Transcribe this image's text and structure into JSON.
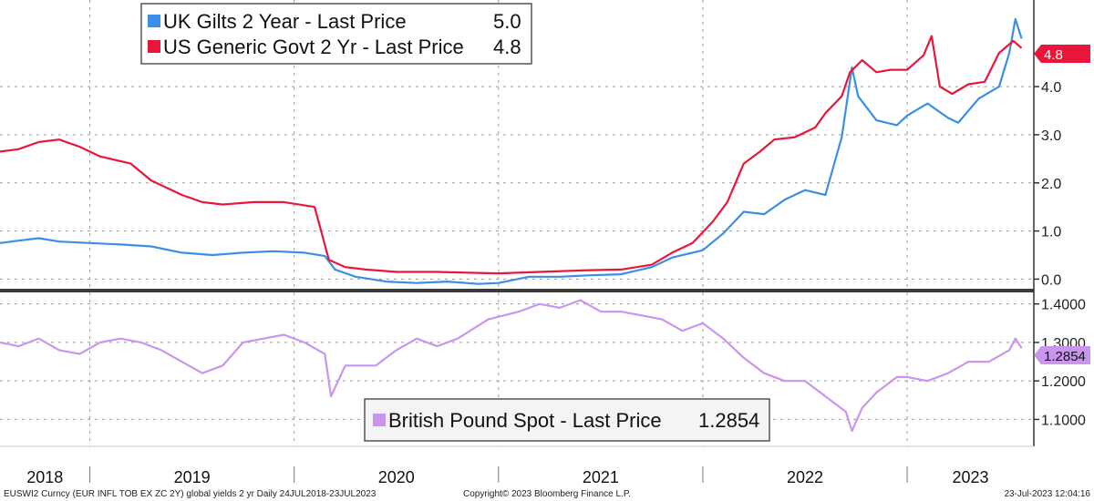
{
  "chart_data": [
    {
      "type": "line",
      "ylim": [
        -0.2,
        5.8
      ],
      "y_ticks": [
        "0.0",
        "1.0",
        "2.0",
        "3.0",
        "4.0"
      ],
      "y_tick_values": [
        0,
        1,
        2,
        3,
        4
      ],
      "last_price_tag": "4.8",
      "legend": {
        "placement": "top-left",
        "entries": [
          {
            "label": "UK Gilts 2 Year - Last Price",
            "value": "5.0",
            "color": "#3a8ee6"
          },
          {
            "label": "US Generic Govt 2 Yr - Last Price",
            "value": "4.8",
            "color": "#e8173a"
          }
        ]
      },
      "series": [
        {
          "name": "UK Gilts 2 Year - Last Price",
          "color": "#3a8ee6",
          "values": [
            [
              2018.56,
              0.75
            ],
            [
              2018.65,
              0.8
            ],
            [
              2018.75,
              0.85
            ],
            [
              2018.85,
              0.78
            ],
            [
              2019.0,
              0.75
            ],
            [
              2019.15,
              0.72
            ],
            [
              2019.3,
              0.68
            ],
            [
              2019.45,
              0.55
            ],
            [
              2019.6,
              0.5
            ],
            [
              2019.75,
              0.55
            ],
            [
              2019.9,
              0.58
            ],
            [
              2020.05,
              0.55
            ],
            [
              2020.15,
              0.48
            ],
            [
              2020.2,
              0.2
            ],
            [
              2020.3,
              0.05
            ],
            [
              2020.45,
              -0.05
            ],
            [
              2020.6,
              -0.08
            ],
            [
              2020.75,
              -0.05
            ],
            [
              2020.9,
              -0.1
            ],
            [
              2021.0,
              -0.08
            ],
            [
              2021.15,
              0.05
            ],
            [
              2021.3,
              0.05
            ],
            [
              2021.45,
              0.08
            ],
            [
              2021.6,
              0.1
            ],
            [
              2021.75,
              0.25
            ],
            [
              2021.85,
              0.45
            ],
            [
              2021.95,
              0.55
            ],
            [
              2022.0,
              0.6
            ],
            [
              2022.1,
              0.95
            ],
            [
              2022.2,
              1.4
            ],
            [
              2022.3,
              1.35
            ],
            [
              2022.4,
              1.65
            ],
            [
              2022.5,
              1.85
            ],
            [
              2022.6,
              1.75
            ],
            [
              2022.68,
              2.95
            ],
            [
              2022.73,
              4.4
            ],
            [
              2022.76,
              3.8
            ],
            [
              2022.85,
              3.3
            ],
            [
              2022.95,
              3.2
            ],
            [
              2023.0,
              3.4
            ],
            [
              2023.1,
              3.65
            ],
            [
              2023.2,
              3.35
            ],
            [
              2023.25,
              3.25
            ],
            [
              2023.35,
              3.75
            ],
            [
              2023.45,
              4.0
            ],
            [
              2023.5,
              4.7
            ],
            [
              2023.53,
              5.4
            ],
            [
              2023.56,
              5.0
            ]
          ]
        },
        {
          "name": "US Generic Govt 2 Yr - Last Price",
          "color": "#e8173a",
          "values": [
            [
              2018.56,
              2.65
            ],
            [
              2018.65,
              2.7
            ],
            [
              2018.75,
              2.85
            ],
            [
              2018.85,
              2.9
            ],
            [
              2018.95,
              2.75
            ],
            [
              2019.05,
              2.55
            ],
            [
              2019.2,
              2.4
            ],
            [
              2019.3,
              2.05
            ],
            [
              2019.45,
              1.75
            ],
            [
              2019.55,
              1.6
            ],
            [
              2019.65,
              1.55
            ],
            [
              2019.8,
              1.6
            ],
            [
              2019.95,
              1.6
            ],
            [
              2020.1,
              1.5
            ],
            [
              2020.17,
              0.4
            ],
            [
              2020.25,
              0.25
            ],
            [
              2020.35,
              0.2
            ],
            [
              2020.5,
              0.15
            ],
            [
              2020.7,
              0.15
            ],
            [
              2020.9,
              0.13
            ],
            [
              2021.0,
              0.12
            ],
            [
              2021.2,
              0.15
            ],
            [
              2021.4,
              0.18
            ],
            [
              2021.6,
              0.2
            ],
            [
              2021.75,
              0.3
            ],
            [
              2021.85,
              0.55
            ],
            [
              2021.95,
              0.75
            ],
            [
              2022.05,
              1.2
            ],
            [
              2022.12,
              1.6
            ],
            [
              2022.2,
              2.4
            ],
            [
              2022.28,
              2.65
            ],
            [
              2022.35,
              2.9
            ],
            [
              2022.45,
              2.95
            ],
            [
              2022.55,
              3.15
            ],
            [
              2022.6,
              3.45
            ],
            [
              2022.68,
              3.8
            ],
            [
              2022.72,
              4.3
            ],
            [
              2022.78,
              4.55
            ],
            [
              2022.85,
              4.3
            ],
            [
              2022.92,
              4.35
            ],
            [
              2023.0,
              4.35
            ],
            [
              2023.08,
              4.65
            ],
            [
              2023.12,
              5.05
            ],
            [
              2023.16,
              4.0
            ],
            [
              2023.22,
              3.85
            ],
            [
              2023.3,
              4.05
            ],
            [
              2023.38,
              4.1
            ],
            [
              2023.45,
              4.7
            ],
            [
              2023.52,
              4.95
            ],
            [
              2023.56,
              4.8
            ]
          ]
        }
      ]
    },
    {
      "type": "line",
      "ylim": [
        1.03,
        1.43
      ],
      "y_ticks": [
        "1.4000",
        "1.3000",
        "1.2000",
        "1.1000"
      ],
      "y_tick_values": [
        1.4,
        1.3,
        1.2,
        1.1
      ],
      "last_price_tag": "1.2854",
      "legend": {
        "placement": "bottom-center",
        "entries": [
          {
            "label": "British Pound Spot - Last Price",
            "value": "1.2854",
            "color": "#c995ee"
          }
        ]
      },
      "series": [
        {
          "name": "British Pound Spot - Last Price",
          "color": "#c995ee",
          "values": [
            [
              2018.56,
              1.3
            ],
            [
              2018.65,
              1.29
            ],
            [
              2018.75,
              1.31
            ],
            [
              2018.85,
              1.28
            ],
            [
              2018.95,
              1.27
            ],
            [
              2019.05,
              1.3
            ],
            [
              2019.15,
              1.31
            ],
            [
              2019.25,
              1.3
            ],
            [
              2019.35,
              1.28
            ],
            [
              2019.45,
              1.25
            ],
            [
              2019.55,
              1.22
            ],
            [
              2019.65,
              1.24
            ],
            [
              2019.75,
              1.3
            ],
            [
              2019.85,
              1.31
            ],
            [
              2019.95,
              1.32
            ],
            [
              2020.05,
              1.3
            ],
            [
              2020.15,
              1.27
            ],
            [
              2020.18,
              1.16
            ],
            [
              2020.25,
              1.24
            ],
            [
              2020.4,
              1.24
            ],
            [
              2020.5,
              1.28
            ],
            [
              2020.6,
              1.31
            ],
            [
              2020.7,
              1.29
            ],
            [
              2020.8,
              1.31
            ],
            [
              2020.95,
              1.36
            ],
            [
              2021.1,
              1.38
            ],
            [
              2021.2,
              1.4
            ],
            [
              2021.3,
              1.39
            ],
            [
              2021.4,
              1.41
            ],
            [
              2021.5,
              1.38
            ],
            [
              2021.6,
              1.38
            ],
            [
              2021.7,
              1.37
            ],
            [
              2021.8,
              1.36
            ],
            [
              2021.9,
              1.33
            ],
            [
              2022.0,
              1.35
            ],
            [
              2022.1,
              1.31
            ],
            [
              2022.2,
              1.26
            ],
            [
              2022.3,
              1.22
            ],
            [
              2022.4,
              1.2
            ],
            [
              2022.5,
              1.2
            ],
            [
              2022.6,
              1.16
            ],
            [
              2022.7,
              1.12
            ],
            [
              2022.73,
              1.07
            ],
            [
              2022.78,
              1.13
            ],
            [
              2022.85,
              1.17
            ],
            [
              2022.95,
              1.21
            ],
            [
              2023.0,
              1.21
            ],
            [
              2023.1,
              1.2
            ],
            [
              2023.2,
              1.22
            ],
            [
              2023.3,
              1.25
            ],
            [
              2023.4,
              1.25
            ],
            [
              2023.5,
              1.28
            ],
            [
              2023.53,
              1.31
            ],
            [
              2023.56,
              1.2854
            ]
          ]
        }
      ]
    }
  ],
  "x_axis": {
    "xlim": [
      2018.56,
      2023.62
    ],
    "years": [
      "2018",
      "2019",
      "2020",
      "2021",
      "2022",
      "2023"
    ],
    "year_starts": [
      2019,
      2020,
      2021,
      2022,
      2023
    ]
  },
  "footer": {
    "left": "EUSWI2 Curncy (EUR INFL TOB EX ZC 2Y) global yields 2 yr  Daily 24JUL2018-23JUL2023",
    "center": "Copyright© 2023 Bloomberg Finance L.P.",
    "right": "23-Jul-2023 12:04:16"
  }
}
